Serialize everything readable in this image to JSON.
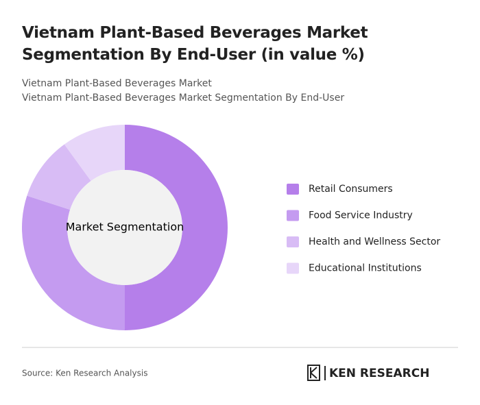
{
  "chart_data": {
    "type": "donut",
    "title": "Vietnam Plant-Based Beverages Market Segmentation By End-User (in value %)",
    "subtitles": [
      "Vietnam Plant-Based Beverages Market",
      "Vietnam Plant-Based Beverages Market Segmentation By End-User"
    ],
    "center_label": "Market Segmentation",
    "categories": [
      "Retail Consumers",
      "Food Service Industry",
      "Health and Wellness Sector",
      "Educational Institutions"
    ],
    "values": [
      50,
      30,
      10,
      10
    ],
    "colors": [
      "#b57fea",
      "#c49bf0",
      "#d8bcf5",
      "#e7d6f9"
    ]
  },
  "footer": {
    "source": "Source: Ken Research Analysis",
    "brand": "KEN RESEARCH"
  }
}
